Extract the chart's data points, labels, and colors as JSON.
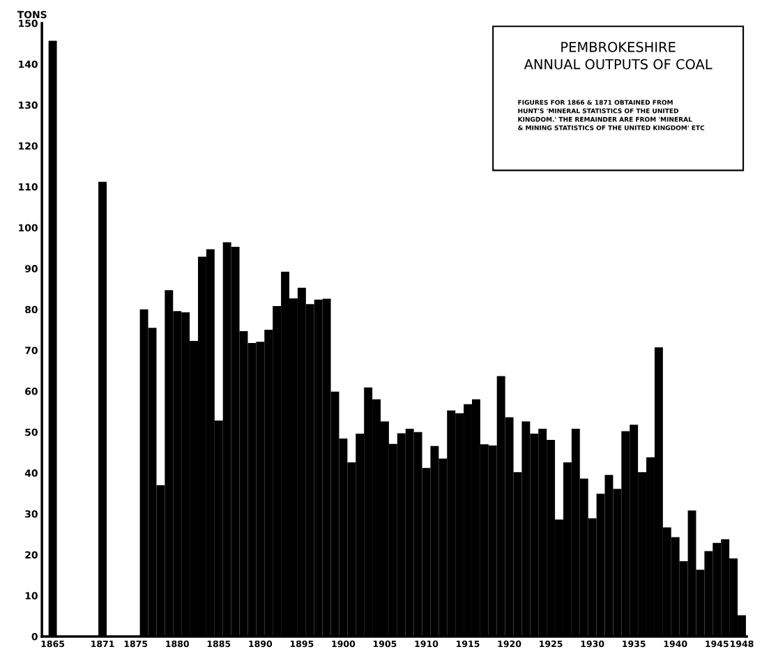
{
  "chart_data": {
    "type": "bar",
    "title": "PEMBROKESHIRE\nANNUAL OUTPUTS OF COAL",
    "annotations": [
      "FIGURES FOR 1866 & 1871 OBTAINED FROM\nHUNT'S 'MINERAL STATISTICS OF THE UNITED\nKINGDOM.' THE REMAINDER ARE FROM 'MINERAL\n& MINING STATISTICS OF THE UNITED KINGDOM' ETC"
    ],
    "ylabel": "TONS",
    "x": [
      1865,
      1871,
      1876,
      1877,
      1878,
      1879,
      1880,
      1881,
      1882,
      1883,
      1884,
      1885,
      1886,
      1887,
      1888,
      1889,
      1890,
      1891,
      1892,
      1893,
      1894,
      1895,
      1896,
      1897,
      1898,
      1899,
      1900,
      1901,
      1902,
      1903,
      1904,
      1905,
      1906,
      1907,
      1908,
      1909,
      1910,
      1911,
      1912,
      1913,
      1914,
      1915,
      1916,
      1917,
      1918,
      1919,
      1920,
      1921,
      1922,
      1923,
      1924,
      1925,
      1926,
      1927,
      1928,
      1929,
      1930,
      1931,
      1932,
      1933,
      1934,
      1935,
      1936,
      1937,
      1938,
      1939,
      1940,
      1941,
      1942,
      1943,
      1944,
      1945,
      1946,
      1947,
      1948
    ],
    "values": [
      145.7,
      111.2,
      80,
      75.5,
      37,
      84.7,
      79.6,
      79.3,
      72.3,
      92.9,
      94.7,
      52.8,
      96.4,
      95.3,
      74.7,
      71.8,
      72.1,
      75,
      80.8,
      89.2,
      82.7,
      85.3,
      81.3,
      82.4,
      82.6,
      59.9,
      48.4,
      42.6,
      49.6,
      60.9,
      58,
      52.6,
      47.1,
      49.7,
      50.8,
      50,
      41.2,
      46.6,
      43.5,
      55.3,
      54.6,
      56.8,
      58,
      47,
      46.7,
      63.7,
      53.6,
      40.2,
      52.6,
      49.6,
      50.8,
      48.1,
      28.6,
      42.6,
      50.8,
      38.6,
      28.9,
      34.9,
      39.5,
      36.1,
      50.2,
      51.8,
      40.2,
      43.8,
      70.7,
      26.7,
      24.3,
      18.4,
      30.8,
      16.3,
      20.9,
      22.9,
      23.8,
      19.1,
      5.2
    ],
    "color": "#000000",
    "xlim": [
      1863.7,
      1948.6
    ],
    "xticks": [
      1865,
      1871,
      1875,
      1880,
      1885,
      1890,
      1895,
      1900,
      1905,
      1910,
      1915,
      1920,
      1925,
      1930,
      1935,
      1940,
      1945,
      1948
    ],
    "ylim": [
      0,
      150
    ],
    "yticks": [
      0,
      10,
      20,
      30,
      40,
      50,
      60,
      70,
      80,
      90,
      100,
      110,
      120,
      130,
      140,
      150
    ],
    "grid": false,
    "legend": false
  }
}
